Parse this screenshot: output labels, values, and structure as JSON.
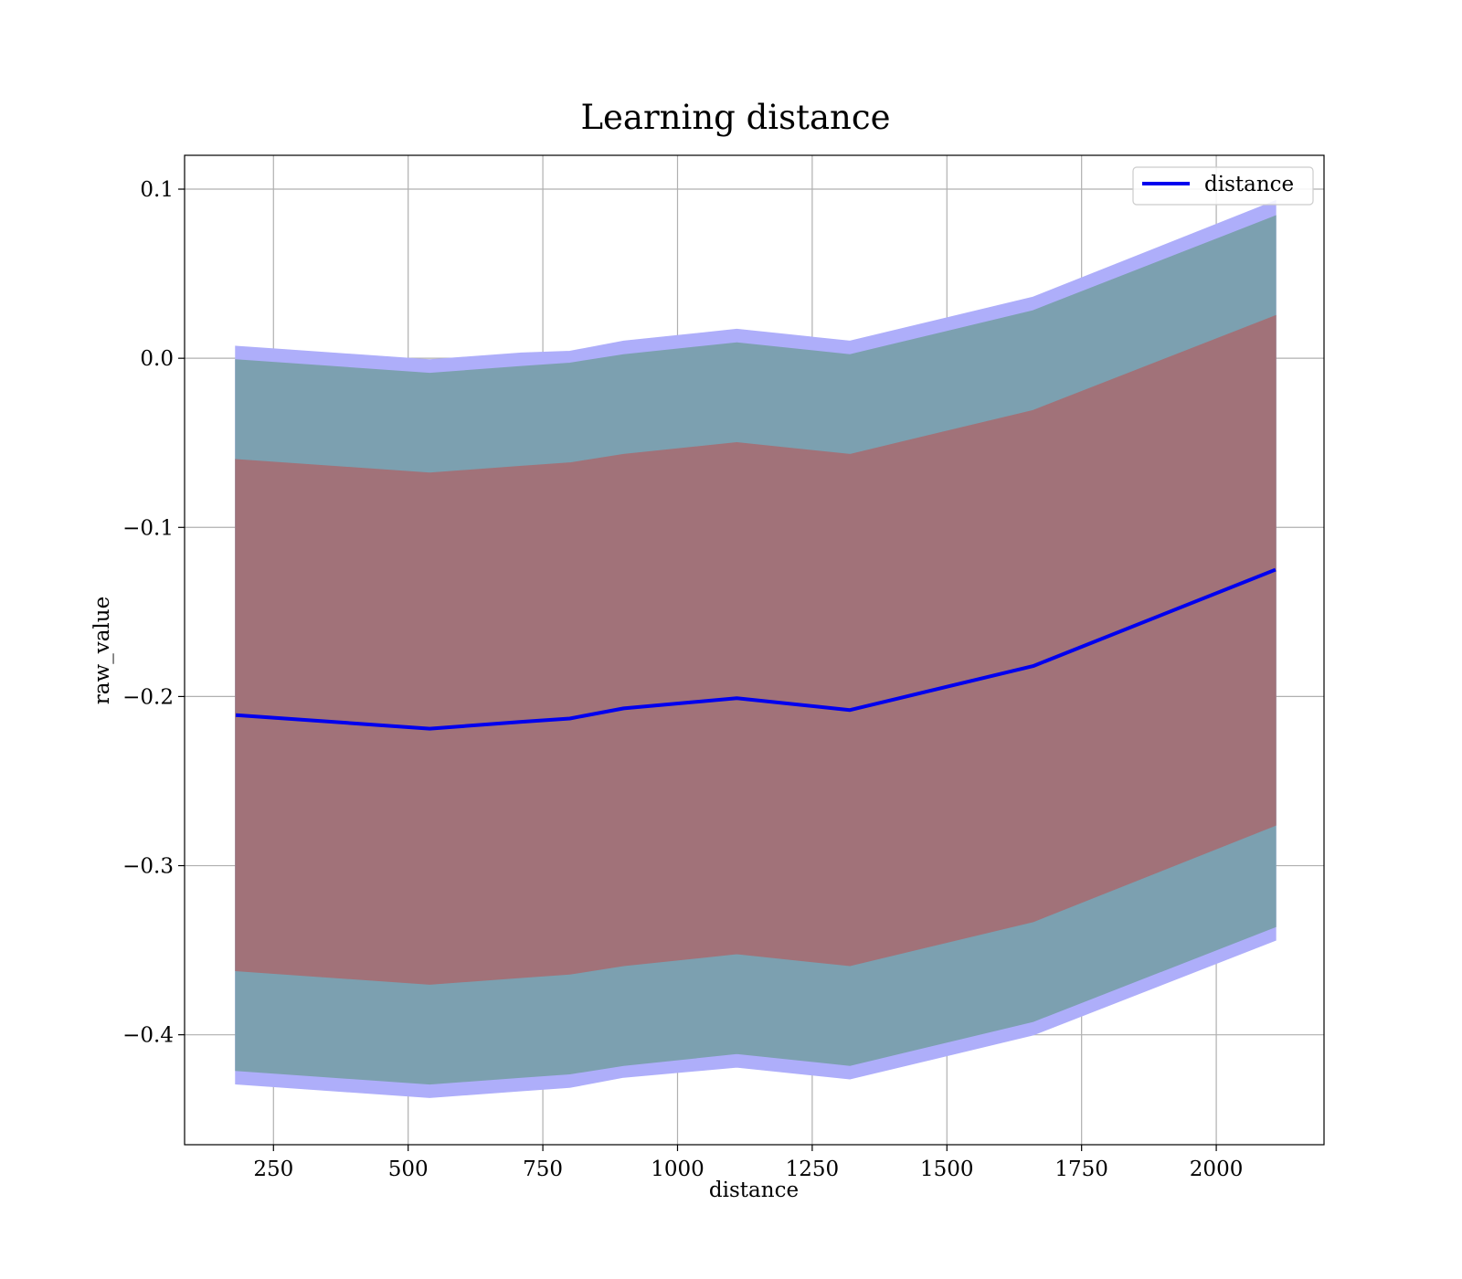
{
  "chart_data": {
    "type": "line",
    "title": "Learning distance",
    "xlabel": "distance",
    "ylabel": "raw_value",
    "xlim": [
      85,
      2200
    ],
    "ylim": [
      -0.465,
      0.12
    ],
    "grid": true,
    "legend_position": "top-right",
    "x_ticks": [
      250,
      500,
      750,
      1000,
      1250,
      1500,
      1750,
      2000
    ],
    "x_tick_labels": [
      "250",
      "500",
      "750",
      "1000",
      "1250",
      "1500",
      "1750",
      "2000"
    ],
    "y_ticks": [
      0.1,
      0.0,
      -0.1,
      -0.2,
      -0.3,
      -0.4
    ],
    "y_tick_labels": [
      "0.1",
      "0.0",
      "−0.1",
      "−0.2",
      "−0.3",
      "−0.4"
    ],
    "x": [
      180,
      540,
      710,
      800,
      900,
      1110,
      1320,
      1660,
      2110
    ],
    "series": [
      {
        "name": "distance",
        "color": "#0000ee",
        "values": [
          -0.211,
          -0.219,
          -0.215,
          -0.213,
          -0.207,
          -0.201,
          -0.208,
          -0.182,
          -0.125
        ]
      }
    ],
    "bands": [
      {
        "role": "outer",
        "color": "#aeaefa",
        "upper": [
          0.007,
          -0.001,
          0.003,
          0.004,
          0.01,
          0.017,
          0.01,
          0.036,
          0.093
        ],
        "lower": [
          -0.429,
          -0.437,
          -0.433,
          -0.431,
          -0.425,
          -0.419,
          -0.426,
          -0.4,
          -0.344
        ]
      },
      {
        "role": "middle",
        "color": "#7ca0b0",
        "upper": [
          -0.001,
          -0.009,
          -0.005,
          -0.003,
          0.002,
          0.009,
          0.002,
          0.028,
          0.084
        ],
        "lower": [
          -0.421,
          -0.429,
          -0.425,
          -0.423,
          -0.418,
          -0.411,
          -0.418,
          -0.392,
          -0.336
        ]
      },
      {
        "role": "inner",
        "color": "#a17279",
        "upper": [
          -0.06,
          -0.068,
          -0.064,
          -0.062,
          -0.057,
          -0.05,
          -0.057,
          -0.031,
          0.025
        ],
        "lower": [
          -0.362,
          -0.37,
          -0.366,
          -0.364,
          -0.359,
          -0.352,
          -0.359,
          -0.333,
          -0.276
        ]
      }
    ]
  }
}
